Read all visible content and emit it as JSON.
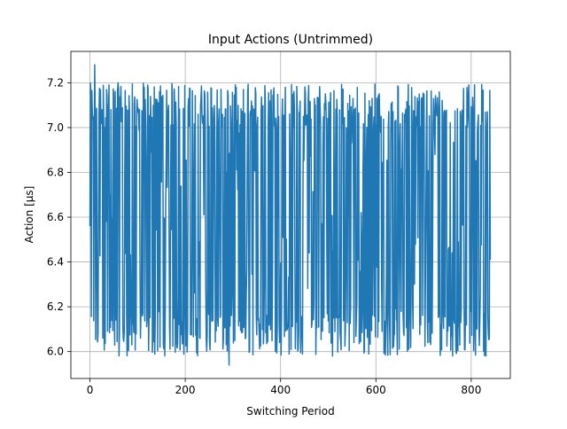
{
  "chart_data": {
    "type": "line",
    "title": "Input Actions (Untrimmed)",
    "xlabel": "Switching Period",
    "ylabel": "Action [μs]",
    "xlim": [
      -40,
      882
    ],
    "ylim": [
      5.88,
      7.34
    ],
    "xticks": [
      0,
      200,
      400,
      600,
      800
    ],
    "xtick_labels": [
      "0",
      "200",
      "400",
      "600",
      "800"
    ],
    "yticks": [
      6.0,
      6.2,
      6.4,
      6.6,
      6.8,
      7.0,
      7.2
    ],
    "ytick_labels": [
      "6.0",
      "6.2",
      "6.4",
      "6.6",
      "6.8",
      "7.0",
      "7.2"
    ],
    "grid": true,
    "series": [
      {
        "color": "#1f77b4",
        "n_points": 841,
        "x_range": [
          0,
          840
        ],
        "y_range": [
          5.94,
          7.28
        ],
        "start_value": 6.56,
        "end_value": 6.41,
        "peak": {
          "x": 10,
          "y": 7.28
        },
        "trough": {
          "x": 292,
          "y": 5.94
        }
      }
    ]
  }
}
